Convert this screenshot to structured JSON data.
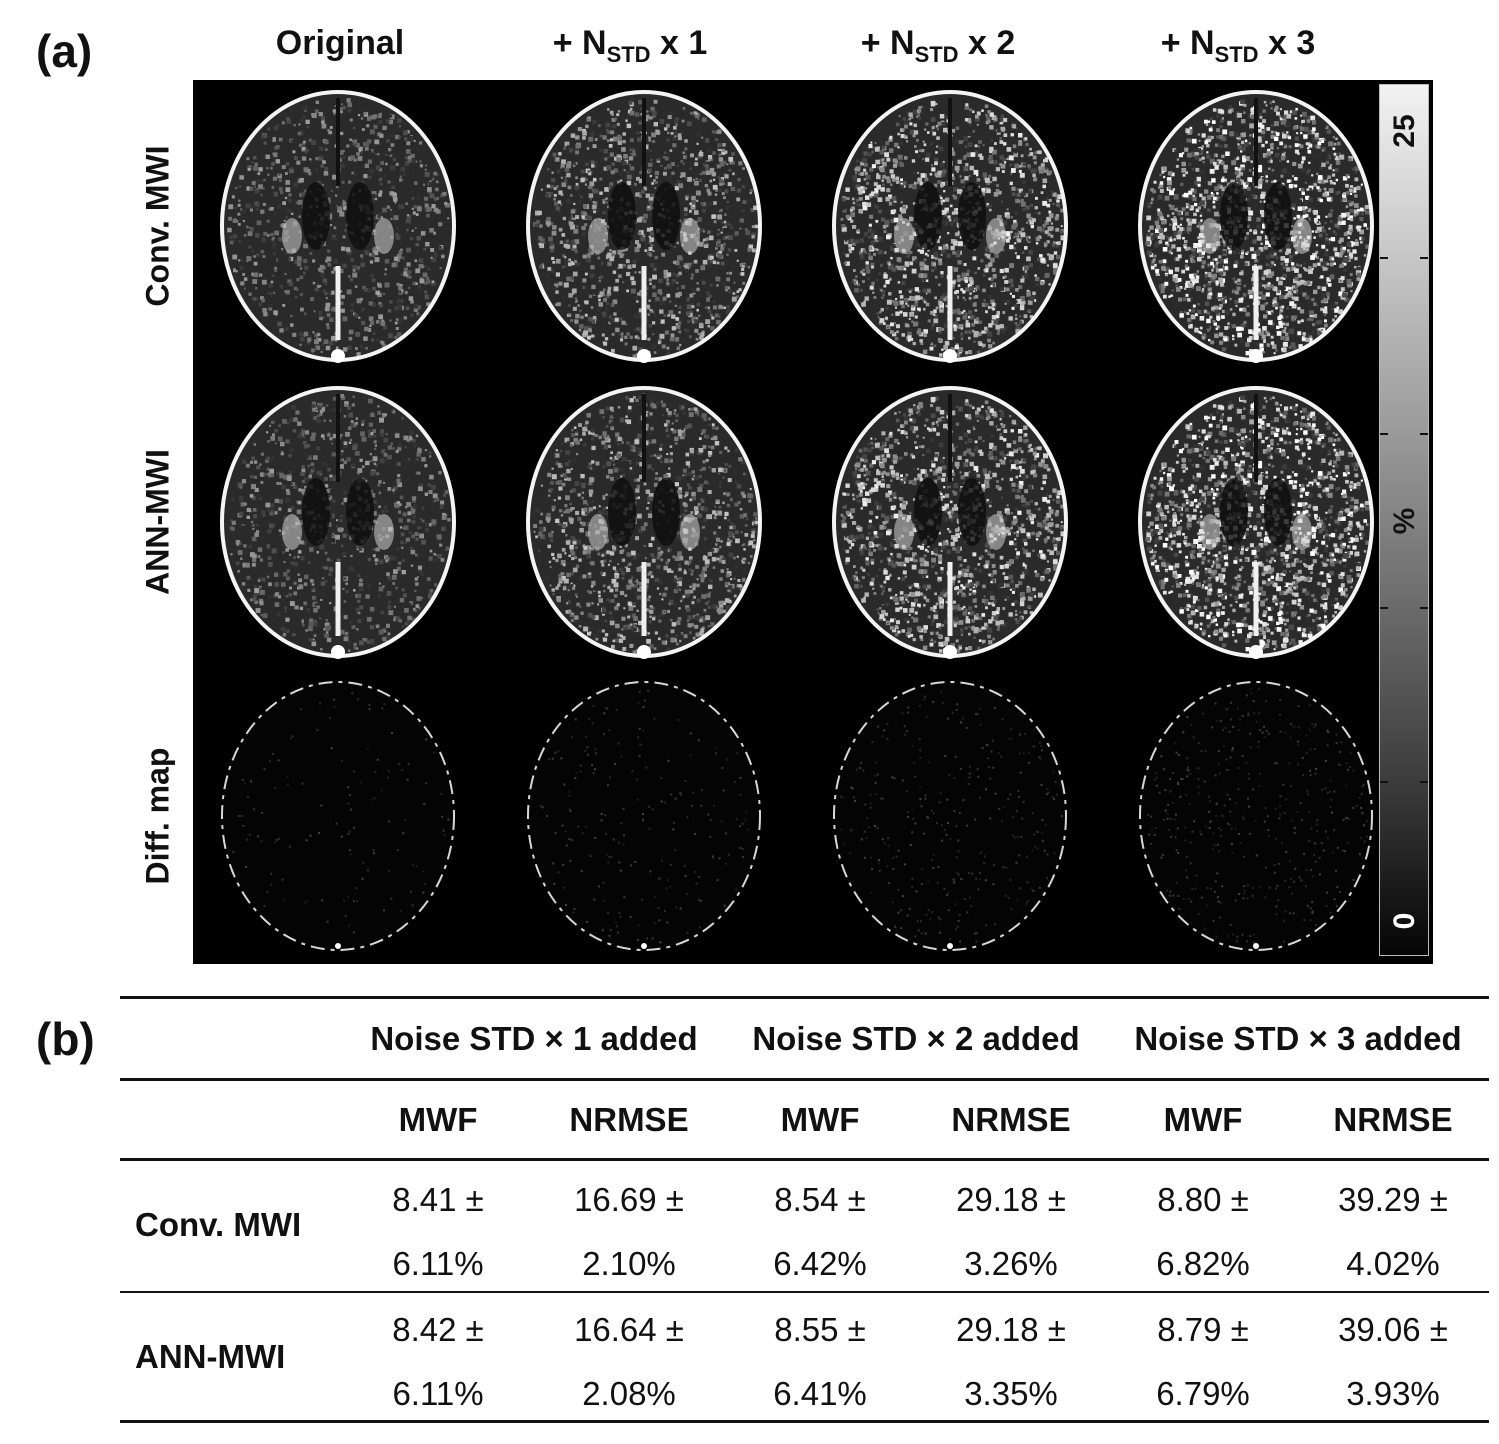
{
  "panel_a_label": "(a)",
  "panel_b_label": "(b)",
  "columns": [
    {
      "main": "Original",
      "sub": "",
      "tail": ""
    },
    {
      "main": "+ N",
      "sub": "STD",
      "tail": " x 1"
    },
    {
      "main": "+ N",
      "sub": "STD",
      "tail": " x 2"
    },
    {
      "main": "+ N",
      "sub": "STD",
      "tail": " x 3"
    }
  ],
  "rows": [
    "Conv. MWI",
    "ANN-MWI",
    "Diff. map"
  ],
  "colorbar": {
    "max": "25",
    "min": "0",
    "unit": "%"
  },
  "table": {
    "groups": [
      "Noise STD × 1 added",
      "Noise STD × 2 added",
      "Noise STD × 3 added"
    ],
    "subheaders": [
      "MWF",
      "NRMSE",
      "MWF",
      "NRMSE",
      "MWF",
      "NRMSE"
    ],
    "rows": [
      {
        "label": "Conv. MWI",
        "cells": [
          [
            "8.41 ±",
            "6.11%"
          ],
          [
            "16.69 ±",
            "2.10%"
          ],
          [
            "8.54 ±",
            "6.42%"
          ],
          [
            "29.18 ±",
            "3.26%"
          ],
          [
            "8.80 ±",
            "6.82%"
          ],
          [
            "39.29 ±",
            "4.02%"
          ]
        ]
      },
      {
        "label": "ANN-MWI",
        "cells": [
          [
            "8.42 ±",
            "6.11%"
          ],
          [
            "16.64 ±",
            "2.08%"
          ],
          [
            "8.55 ±",
            "6.41%"
          ],
          [
            "29.18 ±",
            "3.35%"
          ],
          [
            "8.79 ±",
            "6.79%"
          ],
          [
            "39.06 ±",
            "3.93%"
          ]
        ]
      }
    ]
  }
}
